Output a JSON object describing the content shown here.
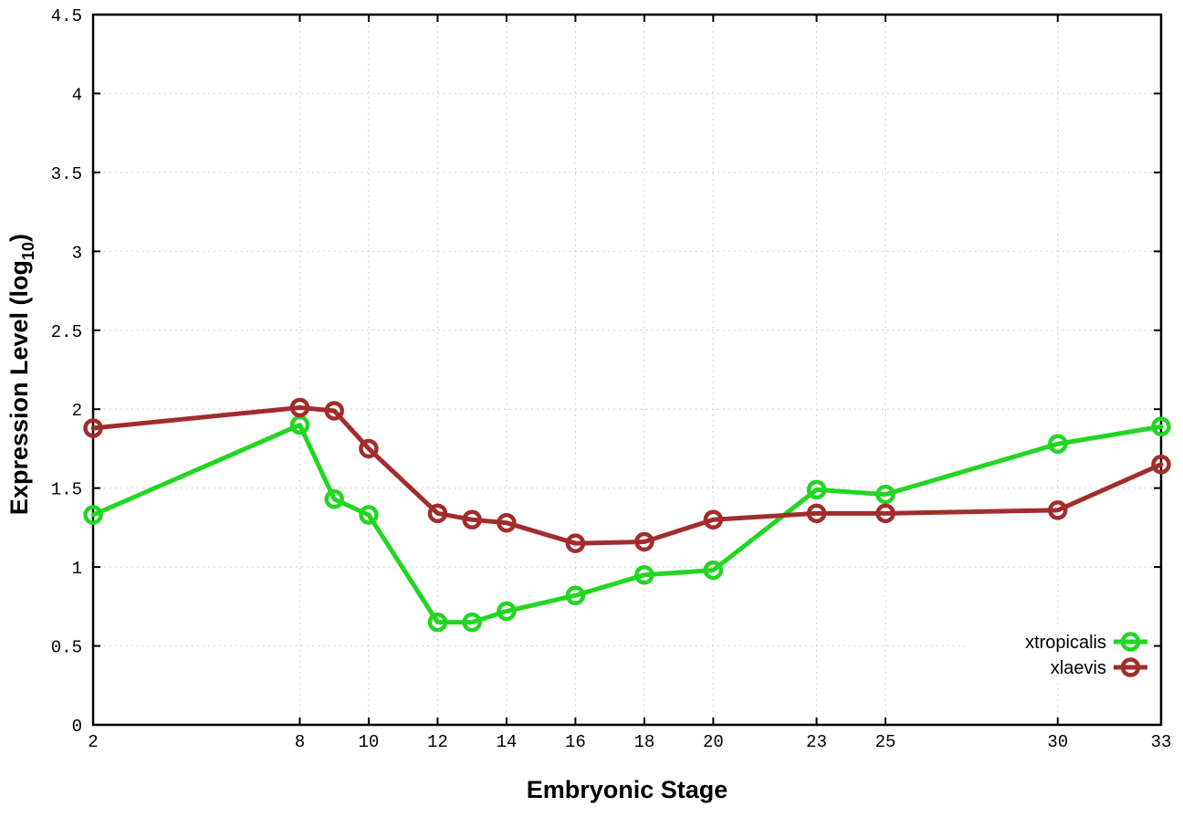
{
  "page": {
    "background": "#ffffff"
  },
  "chart_data": {
    "type": "line",
    "title": "",
    "xlabel": "Embryonic Stage",
    "ylabel": "Expression Level (log10)",
    "ylabel_parts": {
      "main": "Expression Level (log",
      "sub": "10",
      "close": ")"
    },
    "xlim": [
      2,
      33
    ],
    "ylim": [
      0,
      4.5
    ],
    "xticks": [
      2,
      8,
      10,
      12,
      14,
      16,
      18,
      20,
      23,
      25,
      30,
      33
    ],
    "ytick_labels": [
      "0",
      "0.5",
      "1",
      "1.5",
      "2",
      "2.5",
      "3",
      "3.5",
      "4",
      "4.5"
    ],
    "grid": true,
    "legend_position": "inside-bottom-right",
    "x": [
      2,
      8,
      9,
      10,
      12,
      13,
      14,
      16,
      18,
      20,
      23,
      25,
      30,
      33
    ],
    "series": [
      {
        "name": "xtropicalis",
        "color": "#22d622",
        "values": [
          1.33,
          1.9,
          1.43,
          1.33,
          0.65,
          0.65,
          0.72,
          0.82,
          0.95,
          0.98,
          1.49,
          1.46,
          1.78,
          1.89
        ]
      },
      {
        "name": "xlaevis",
        "color": "#a22c2c",
        "values": [
          1.88,
          2.01,
          1.99,
          1.75,
          1.34,
          1.3,
          1.28,
          1.15,
          1.16,
          1.3,
          1.34,
          1.34,
          1.36,
          1.65
        ]
      }
    ],
    "styles": {
      "grid_color": "#c8c8c8",
      "axis_color": "#000000",
      "text_color": "#000000",
      "background": "#ffffff",
      "line_width": 5,
      "marker_radius": 8.5,
      "marker_stroke": 4.5
    }
  }
}
